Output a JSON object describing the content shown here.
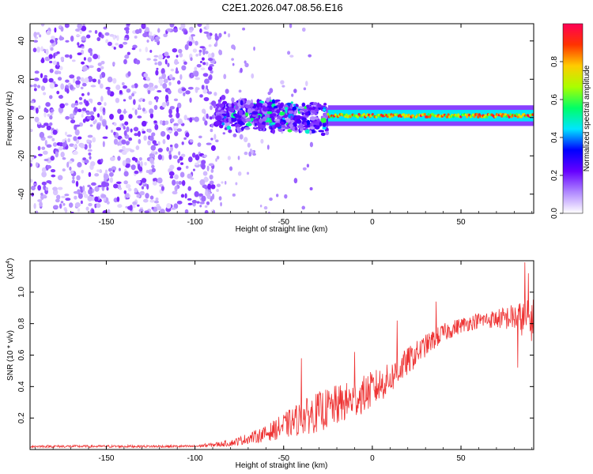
{
  "title": "C2E1.2026.047.08.56.E16",
  "chart_data": [
    {
      "type": "heatmap",
      "title": "C2E1.2026.047.08.56.E16",
      "xlabel": "Height of straight line (km)",
      "ylabel": "Frequency (Hz)",
      "xlim": [
        -193,
        91
      ],
      "ylim": [
        -50,
        49
      ],
      "xticks": [
        -150,
        -100,
        -50,
        0,
        50
      ],
      "xtick_labels": [
        "-150",
        "-100",
        "-50",
        "0",
        "50"
      ],
      "yticks": [
        -40,
        -20,
        0,
        20,
        40
      ],
      "ytick_labels": [
        "-40",
        "-20",
        "0",
        "20",
        "40"
      ],
      "colorbar": {
        "label": "Normalized spectral amplitude",
        "range": [
          0,
          1
        ],
        "ticks": [
          0.0,
          0.2,
          0.4,
          0.6,
          0.8
        ],
        "tick_labels": [
          "0.0",
          "0.2",
          "0.4",
          "0.6",
          "0.8"
        ],
        "colors": [
          "#ffffff",
          "#b088ff",
          "#6600ff",
          "#0000ff",
          "#00e5ff",
          "#00ff66",
          "#aaff00",
          "#ffcc00",
          "#ff3300",
          "#ff0055"
        ]
      },
      "regions": [
        {
          "name": "broadband noise",
          "x": [
            -193,
            -88
          ],
          "y": [
            -50,
            49
          ],
          "amplitude": [
            0.0,
            0.2
          ]
        },
        {
          "name": "scattered noise",
          "x": [
            -88,
            -30
          ],
          "y": [
            -50,
            49
          ],
          "amplitude": [
            0.0,
            0.15
          ]
        },
        {
          "name": "signal onset",
          "x": [
            -88,
            -25
          ],
          "y_center": 2,
          "y_halfwidth": 9,
          "amplitude": [
            0.2,
            0.6
          ]
        },
        {
          "name": "carrier line",
          "x": [
            -25,
            91
          ],
          "y_center": 1,
          "y_halfwidth": 3,
          "amplitude": [
            0.4,
            1.0
          ]
        }
      ]
    },
    {
      "type": "line",
      "xlabel": "Height of straight line (km)",
      "ylabel": "SNR (10 * v/v)",
      "y_multiplier_label": "(x10",
      "y_multiplier_exp": "4",
      "xlim": [
        -193,
        91
      ],
      "ylim": [
        0,
        1.2
      ],
      "xticks": [
        -150,
        -100,
        -50,
        0,
        50
      ],
      "xtick_labels": [
        "-150",
        "-100",
        "-50",
        "0",
        "50"
      ],
      "yticks": [
        0.2,
        0.4,
        0.6,
        0.8,
        1.0
      ],
      "ytick_labels": [
        "0.2",
        "0.4",
        "0.6",
        "0.8",
        "1.0"
      ],
      "color": "#ee3333",
      "trend": {
        "x": [
          -193,
          -100,
          -80,
          -60,
          -50,
          -40,
          -30,
          -20,
          -10,
          0,
          10,
          20,
          30,
          40,
          50,
          60,
          70,
          80,
          91
        ],
        "mean": [
          0.02,
          0.02,
          0.04,
          0.1,
          0.15,
          0.2,
          0.24,
          0.28,
          0.32,
          0.38,
          0.45,
          0.56,
          0.66,
          0.74,
          0.79,
          0.82,
          0.83,
          0.84,
          0.82
        ],
        "jitter": [
          0.008,
          0.008,
          0.02,
          0.05,
          0.08,
          0.11,
          0.13,
          0.13,
          0.12,
          0.12,
          0.1,
          0.09,
          0.07,
          0.06,
          0.05,
          0.05,
          0.06,
          0.09,
          0.14
        ]
      },
      "peaks": [
        {
          "x": -40,
          "y": 0.58
        },
        {
          "x": -10,
          "y": 0.62
        },
        {
          "x": 14,
          "y": 0.82
        },
        {
          "x": 36,
          "y": 0.94
        },
        {
          "x": 73,
          "y": 0.79
        },
        {
          "x": 82,
          "y": 0.52
        },
        {
          "x": 86,
          "y": 1.19
        },
        {
          "x": 88,
          "y": 1.12
        }
      ]
    }
  ]
}
